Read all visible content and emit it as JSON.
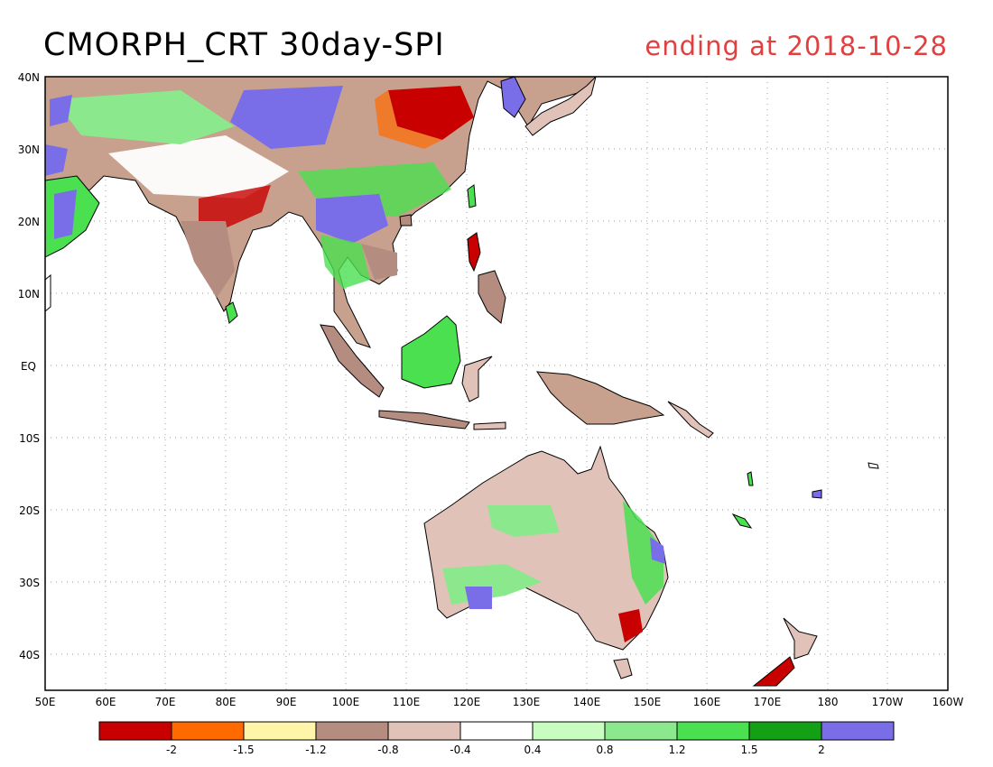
{
  "title": "CMORPH_CRT 30day-SPI",
  "date_label": "ending at 2018-10-28",
  "axes": {
    "lon_labels": [
      "50E",
      "60E",
      "70E",
      "80E",
      "90E",
      "100E",
      "110E",
      "120E",
      "130E",
      "140E",
      "150E",
      "160E",
      "170E",
      "180",
      "170W",
      "160W"
    ],
    "lat_labels": [
      "40N",
      "30N",
      "20N",
      "10N",
      "EQ",
      "10S",
      "20S",
      "30S",
      "40S"
    ]
  },
  "colorbar": {
    "colors": [
      "#c80000",
      "#ff6a00",
      "#fff5a8",
      "#b58c80",
      "#e0c2b8",
      "#ffffff",
      "#c8fcc0",
      "#8ce88c",
      "#4ae050",
      "#14a014",
      "#7a6ee8"
    ],
    "labels": [
      "-2",
      "-1.5",
      "-1.2",
      "-0.8",
      "-0.4",
      "0.4",
      "0.8",
      "1.2",
      "1.5",
      "2"
    ]
  }
}
